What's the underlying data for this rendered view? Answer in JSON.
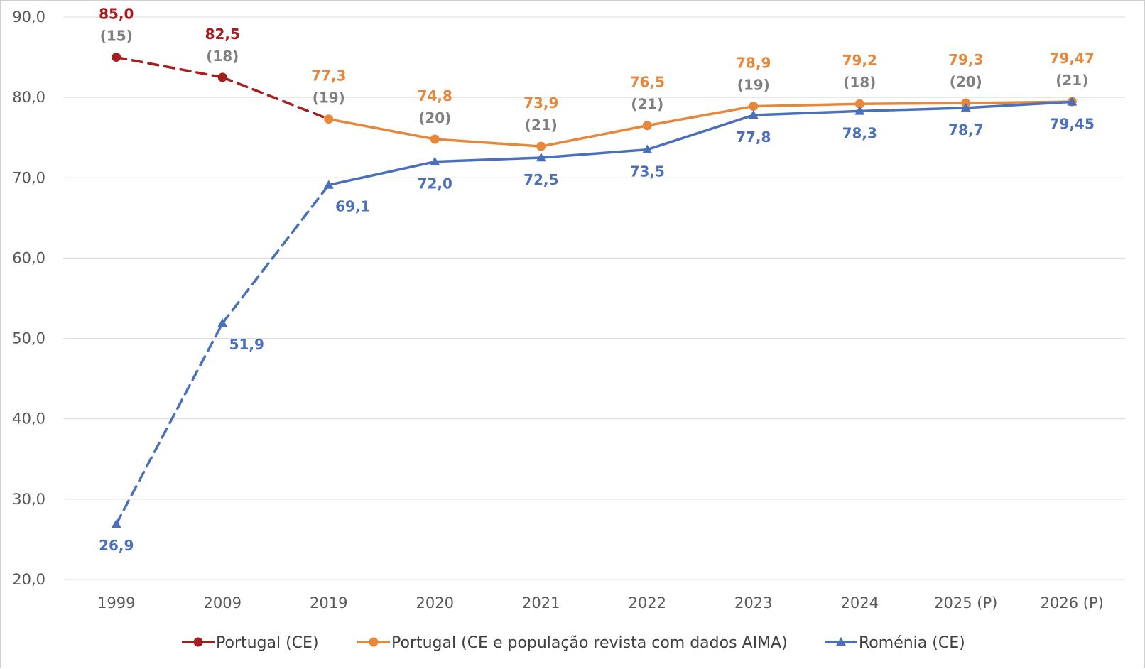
{
  "chart_data": {
    "type": "line",
    "categories": [
      "1999",
      "2009",
      "2019",
      "2020",
      "2021",
      "2022",
      "2023",
      "2024",
      "2025 (P)",
      "2026 (P)"
    ],
    "ylim": [
      20,
      90
    ],
    "yticks": [
      "20,0",
      "30,0",
      "40,0",
      "50,0",
      "60,0",
      "70,0",
      "80,0",
      "90,0"
    ],
    "grid": true,
    "legend_position": "bottom",
    "series": [
      {
        "name": "Portugal (CE)",
        "color": "#a51d1d",
        "marker": "circle",
        "dashed": true,
        "values": [
          85.0,
          82.5,
          77.3,
          null,
          null,
          null,
          null,
          null,
          null,
          null
        ],
        "labels": [
          "85,0",
          "82,5",
          null,
          null,
          null,
          null,
          null,
          null,
          null,
          null
        ],
        "ranks": [
          "(15)",
          "(18)",
          null,
          null,
          null,
          null,
          null,
          null,
          null,
          null
        ]
      },
      {
        "name": "Portugal (CE e população revista com dados AIMA)",
        "color": "#e8873a",
        "marker": "circle",
        "dashed": false,
        "values": [
          null,
          null,
          77.3,
          74.8,
          73.9,
          76.5,
          78.9,
          79.2,
          79.3,
          79.47
        ],
        "labels": [
          null,
          null,
          "77,3",
          "74,8",
          "73,9",
          "76,5",
          "78,9",
          "79,2",
          "79,3",
          "79,47"
        ],
        "ranks": [
          null,
          null,
          "(19)",
          "(20)",
          "(21)",
          "(21)",
          "(19)",
          "(18)",
          "(20)",
          "(21)"
        ]
      },
      {
        "name": "Roménia (CE)",
        "color": "#4a6fbd",
        "marker": "triangle",
        "dashed_until_index": 2,
        "values": [
          26.9,
          51.9,
          69.1,
          72.0,
          72.5,
          73.5,
          77.8,
          78.3,
          78.7,
          79.45
        ],
        "labels": [
          "26,9",
          "51,9",
          "69,1",
          "72,0",
          "72,5",
          "73,5",
          "77,8",
          "78,3",
          "78,7",
          "79,45"
        ]
      }
    ]
  }
}
